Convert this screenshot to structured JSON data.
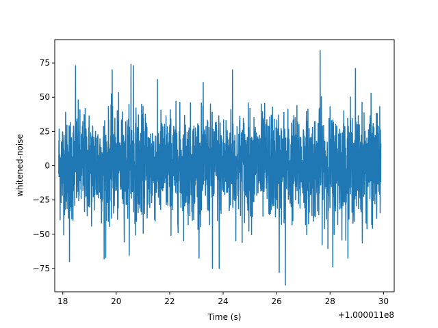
{
  "chart_data": {
    "type": "line",
    "title": "",
    "xlabel": "Time (s)",
    "ylabel": "whitened-noise",
    "x_offset_label": "+1.000011e8",
    "xlim": [
      17.7,
      30.4
    ],
    "ylim": [
      -92,
      92
    ],
    "x_ticks": [
      18,
      20,
      22,
      24,
      26,
      28,
      30
    ],
    "y_ticks": [
      -75,
      -50,
      -25,
      0,
      25,
      50,
      75
    ],
    "grid": false,
    "legend": "none",
    "series": [
      {
        "color": "#1f77b4",
        "x_range": [
          17.85,
          29.9
        ],
        "y_typical_range": [
          -50,
          50
        ],
        "y_min": -87,
        "y_max": 84,
        "notable_peaks": [
          {
            "x": 27.63,
            "y": 84
          },
          {
            "x": 20.55,
            "y": 74
          },
          {
            "x": 20.65,
            "y": 73
          },
          {
            "x": 18.48,
            "y": 73
          },
          {
            "x": 19.85,
            "y": 70
          },
          {
            "x": 24.35,
            "y": 70
          },
          {
            "x": 28.95,
            "y": 71
          },
          {
            "x": 26.33,
            "y": -87
          },
          {
            "x": 26.1,
            "y": -78
          },
          {
            "x": 23.6,
            "y": -75
          },
          {
            "x": 23.85,
            "y": -75
          },
          {
            "x": 18.25,
            "y": -70
          },
          {
            "x": 19.55,
            "y": -68
          },
          {
            "x": 28.1,
            "y": -74
          }
        ]
      }
    ]
  }
}
